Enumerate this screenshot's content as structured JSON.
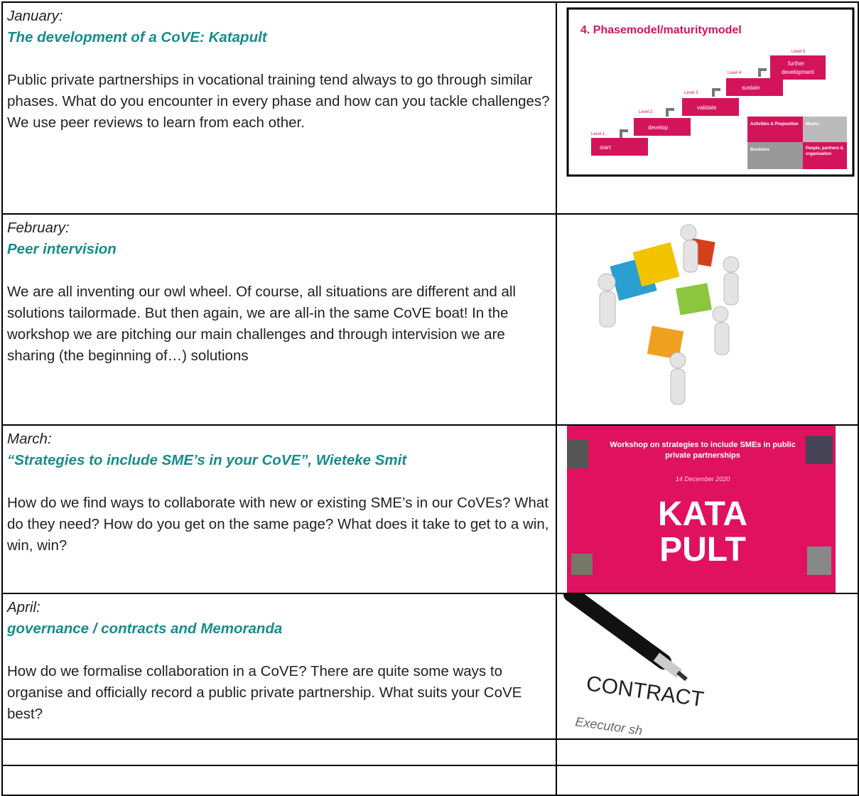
{
  "rows": [
    {
      "month": "January:",
      "title": "The development of a CoVE: Katapult",
      "body": "Public private partnerships in vocational training tend always to go through similar phases. What do you encounter in every phase and how can you tackle challenges? We use peer reviews to learn from each other."
    },
    {
      "month": "February:",
      "title": "Peer intervision",
      "body": "We are all inventing our owl wheel. Of course, all situations are different and all solutions tailormade. But then again, we are all-in the same CoVE boat! In the workshop we are pitching our main challenges and through  intervision we are sharing (the beginning of…) solutions"
    },
    {
      "month": "March:",
      "title": "“Strategies to include SME’s in your CoVE”, Wieteke Smit",
      "body": "How do we find ways to collaborate with new or existing SME’s in our CoVEs? What do they need? How do you get on the same page? What does it take to get to a win, win, win?"
    },
    {
      "month": "April:",
      "title": "governance / contracts and Memoranda",
      "body": "How do we formalise collaboration in a CoVE? There are quite some ways to organise and officially record a public private partnership. What suits your CoVE best?"
    }
  ],
  "images": {
    "phasemodel": {
      "title": "4. Phasemodel/maturitymodel",
      "levels": [
        "Level 1",
        "Level 2",
        "Level 3",
        "Level 4",
        "Level 5"
      ],
      "steps": [
        "start",
        "develop",
        "validate",
        "sustain",
        "further",
        "development"
      ],
      "boxes": [
        "Activities & Proposition",
        "Means",
        "Business",
        "People, partners &",
        "organisation"
      ]
    },
    "katapult": {
      "heading": [
        "Workshop on strategies to include SMEs in public",
        "private partnerships"
      ],
      "date": "14 December 2020",
      "logo": [
        "KATA",
        "PULT"
      ]
    },
    "contract": {
      "word": "CONTRACT",
      "fragment": "Executor sh"
    }
  }
}
